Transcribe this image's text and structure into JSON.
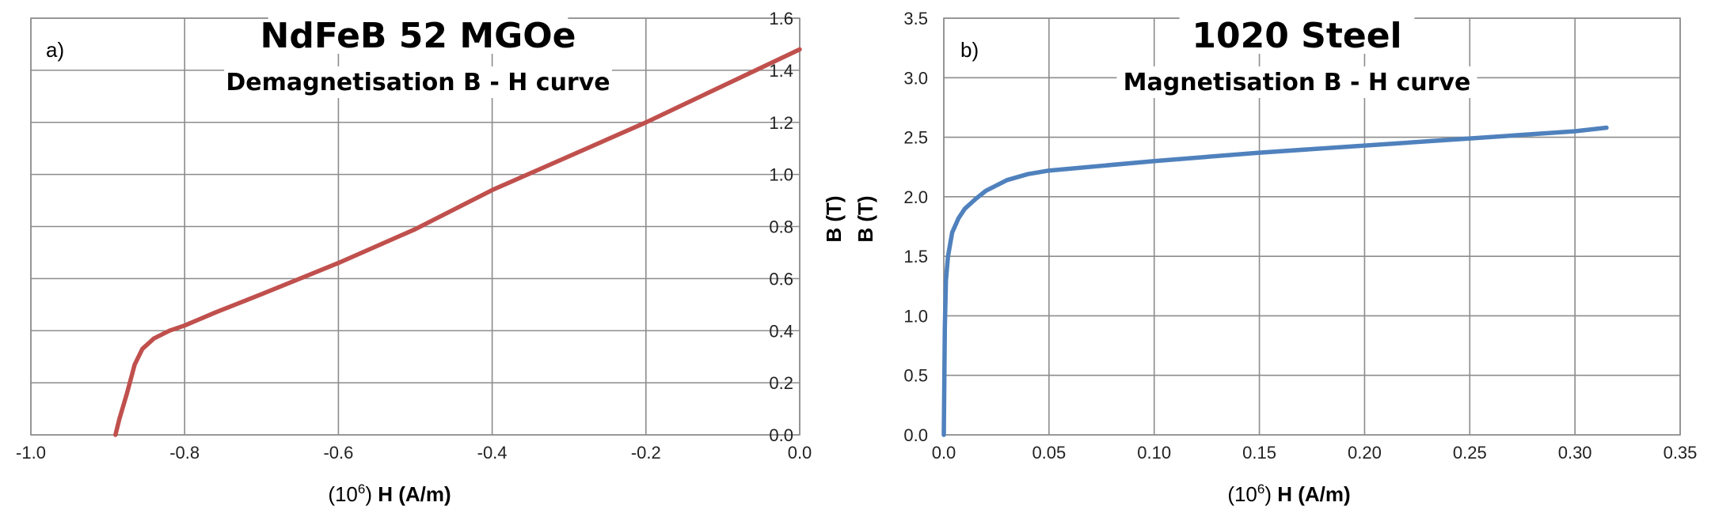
{
  "chart_data": [
    {
      "type": "line",
      "panel_label": "a)",
      "title": "NdFeB 52 MGOe",
      "subtitle": "Demagnetisation B - H curve",
      "xlabel": {
        "prefix": "(10",
        "sup": "6",
        "mid": ") ",
        "bold": "H (A/m)"
      },
      "ylabel": "",
      "xlim": [
        -1.0,
        0.0
      ],
      "ylim": [
        0.0,
        1.6
      ],
      "xticks": [
        "-1.0",
        "-0.8",
        "-0.6",
        "-0.4",
        "-0.2",
        "0.0"
      ],
      "yticks": [
        "0.0",
        "0.2",
        "0.4",
        "0.6",
        "0.8",
        "1.0",
        "1.2",
        "1.4",
        "1.6"
      ],
      "grid": true,
      "color": "#c0504d",
      "series": [
        {
          "x": [
            -0.89,
            -0.885,
            -0.875,
            -0.865,
            -0.855,
            -0.84,
            -0.82,
            -0.8,
            -0.76,
            -0.7,
            -0.6,
            -0.5,
            -0.4,
            -0.3,
            -0.2,
            -0.1,
            0.0
          ],
          "y": [
            0.0,
            0.06,
            0.16,
            0.27,
            0.33,
            0.37,
            0.4,
            0.42,
            0.47,
            0.54,
            0.66,
            0.79,
            0.94,
            1.07,
            1.2,
            1.34,
            1.48
          ]
        }
      ]
    },
    {
      "type": "line",
      "panel_label": "b)",
      "title": "1020 Steel",
      "subtitle": "Magnetisation B - H curve",
      "xlabel": {
        "prefix": "(10",
        "sup": "6",
        "mid": ") ",
        "bold": "H (A/m)"
      },
      "ylabel": "B (T)",
      "xlim": [
        0.0,
        0.35
      ],
      "ylim": [
        0.0,
        3.5
      ],
      "xticks": [
        "0.0",
        "0.05",
        "0.10",
        "0.15",
        "0.20",
        "0.25",
        "0.30",
        "0.35"
      ],
      "yticks": [
        "0.0",
        "0.5",
        "1.0",
        "1.5",
        "2.0",
        "2.5",
        "3.0",
        "3.5"
      ],
      "grid": true,
      "color": "#4f81bd",
      "series": [
        {
          "x": [
            0.0,
            0.0005,
            0.001,
            0.002,
            0.004,
            0.007,
            0.01,
            0.015,
            0.02,
            0.03,
            0.04,
            0.05,
            0.1,
            0.15,
            0.2,
            0.25,
            0.3,
            0.315
          ],
          "y": [
            0.0,
            0.9,
            1.3,
            1.5,
            1.7,
            1.82,
            1.9,
            1.98,
            2.05,
            2.14,
            2.19,
            2.22,
            2.3,
            2.37,
            2.43,
            2.49,
            2.55,
            2.58
          ]
        }
      ]
    }
  ],
  "extra_ylabel": "B (T)"
}
